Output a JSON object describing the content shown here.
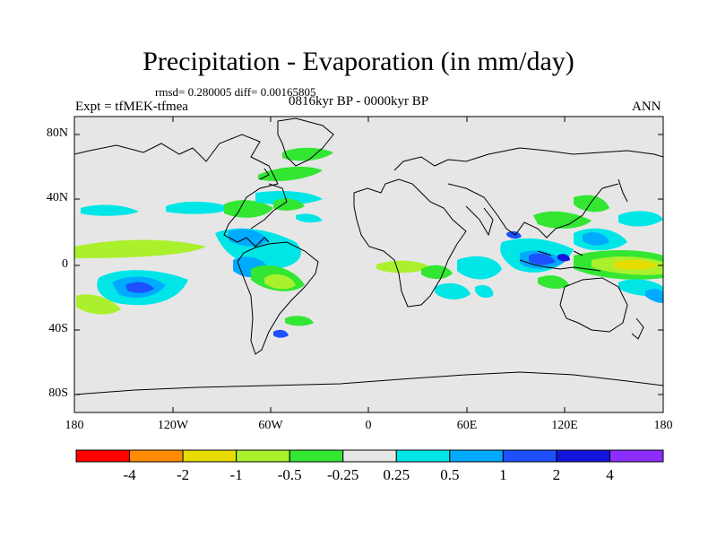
{
  "title": "Precipitation - Evaporation (in mm/day)",
  "stats_line": "rmsd= 0.280005 diff= 0.00165805",
  "experiment": "Expt = tfMEK-tfmea",
  "period": "0816kyr BP - 0000kyr BP",
  "season": "ANN",
  "lat_labels": [
    "80N",
    "40N",
    "0",
    "40S",
    "80S"
  ],
  "lon_labels": [
    "180",
    "120W",
    "60W",
    "0",
    "60E",
    "120E",
    "180"
  ],
  "colorbar": {
    "colors": [
      "#ff0000",
      "#ff8c00",
      "#e6dc00",
      "#aaf02d",
      "#32e632",
      "#e6e6e6",
      "#00e6e6",
      "#00aaff",
      "#1e50ff",
      "#1414dc",
      "#8c2dff"
    ],
    "labels": [
      "-4",
      "-2",
      "-1",
      "-0.5",
      "-0.25",
      "0.25",
      "0.5",
      "1",
      "2",
      "4"
    ]
  },
  "colors": {
    "ocean_background": "#e6e6e6",
    "coastline": "#000000"
  }
}
